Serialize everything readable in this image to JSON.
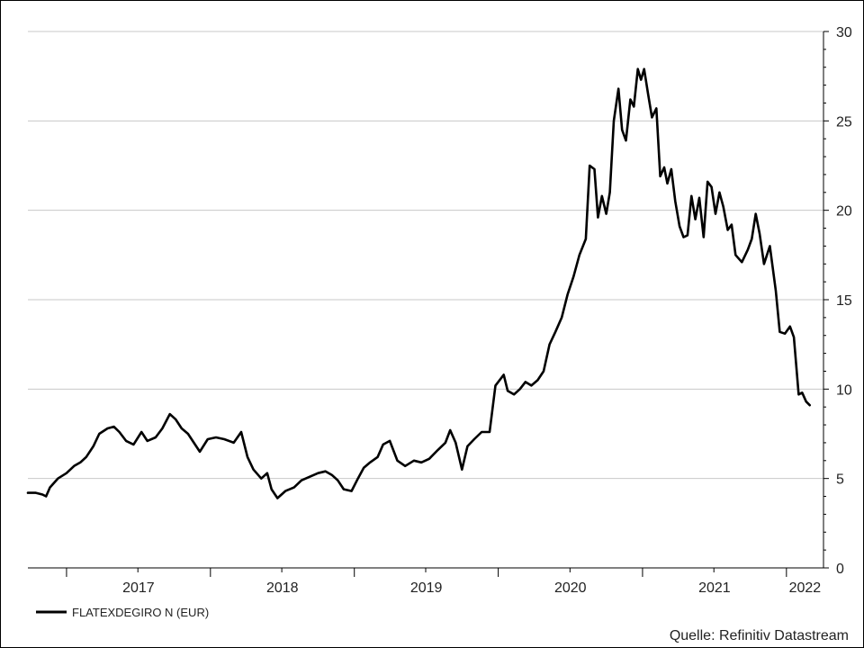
{
  "chart_data": {
    "type": "line",
    "title": "",
    "xlabel": "",
    "ylabel": "",
    "ylim": [
      0,
      30
    ],
    "yticks": [
      0,
      5,
      10,
      15,
      20,
      25,
      30
    ],
    "y_axis_side": "right",
    "grid": "horizontal",
    "x_tick_labels": [
      "2017",
      "2018",
      "2019",
      "2020",
      "2021",
      "2022"
    ],
    "xlim": [
      "2016-09-25",
      "2022-04-05"
    ],
    "legend": {
      "placement": "bottom-left",
      "entries": [
        "FLATEXDEGIRO N (EUR)"
      ]
    },
    "source": "Quelle: Refinitiv Datastream",
    "series": [
      {
        "name": "FLATEXDEGIRO N (EUR)",
        "color": "#000000",
        "points": [
          [
            "2016-09-25",
            4.2
          ],
          [
            "2016-10-15",
            4.2
          ],
          [
            "2016-11-01",
            4.1
          ],
          [
            "2016-11-10",
            4.0
          ],
          [
            "2016-11-20",
            4.5
          ],
          [
            "2016-12-10",
            5.0
          ],
          [
            "2017-01-01",
            5.3
          ],
          [
            "2017-01-20",
            5.7
          ],
          [
            "2017-02-05",
            5.9
          ],
          [
            "2017-02-20",
            6.2
          ],
          [
            "2017-03-10",
            6.8
          ],
          [
            "2017-03-25",
            7.5
          ],
          [
            "2017-04-15",
            7.8
          ],
          [
            "2017-05-01",
            7.9
          ],
          [
            "2017-05-15",
            7.6
          ],
          [
            "2017-06-01",
            7.1
          ],
          [
            "2017-06-20",
            6.9
          ],
          [
            "2017-07-10",
            7.6
          ],
          [
            "2017-07-25",
            7.1
          ],
          [
            "2017-08-15",
            7.3
          ],
          [
            "2017-09-01",
            7.8
          ],
          [
            "2017-09-20",
            8.6
          ],
          [
            "2017-10-05",
            8.3
          ],
          [
            "2017-10-20",
            7.8
          ],
          [
            "2017-11-05",
            7.5
          ],
          [
            "2017-11-20",
            7.0
          ],
          [
            "2017-12-05",
            6.5
          ],
          [
            "2017-12-25",
            7.2
          ],
          [
            "2018-01-15",
            7.3
          ],
          [
            "2018-02-05",
            7.2
          ],
          [
            "2018-03-01",
            7.0
          ],
          [
            "2018-03-20",
            7.6
          ],
          [
            "2018-04-05",
            6.2
          ],
          [
            "2018-04-20",
            5.5
          ],
          [
            "2018-05-10",
            5.0
          ],
          [
            "2018-05-25",
            5.3
          ],
          [
            "2018-06-05",
            4.4
          ],
          [
            "2018-06-20",
            3.9
          ],
          [
            "2018-07-10",
            4.3
          ],
          [
            "2018-08-01",
            4.5
          ],
          [
            "2018-08-20",
            4.9
          ],
          [
            "2018-09-10",
            5.1
          ],
          [
            "2018-10-01",
            5.3
          ],
          [
            "2018-10-20",
            5.4
          ],
          [
            "2018-11-05",
            5.2
          ],
          [
            "2018-11-20",
            4.9
          ],
          [
            "2018-12-05",
            4.4
          ],
          [
            "2018-12-25",
            4.3
          ],
          [
            "2019-01-10",
            5.0
          ],
          [
            "2019-01-25",
            5.6
          ],
          [
            "2019-02-10",
            5.9
          ],
          [
            "2019-03-01",
            6.2
          ],
          [
            "2019-03-15",
            6.9
          ],
          [
            "2019-04-01",
            7.1
          ],
          [
            "2019-04-20",
            6.0
          ],
          [
            "2019-05-10",
            5.7
          ],
          [
            "2019-06-01",
            6.0
          ],
          [
            "2019-06-20",
            5.9
          ],
          [
            "2019-07-10",
            6.1
          ],
          [
            "2019-08-01",
            6.6
          ],
          [
            "2019-08-20",
            7.0
          ],
          [
            "2019-09-01",
            7.7
          ],
          [
            "2019-09-15",
            7.0
          ],
          [
            "2019-10-01",
            5.5
          ],
          [
            "2019-10-15",
            6.8
          ],
          [
            "2019-11-01",
            7.2
          ],
          [
            "2019-11-20",
            7.6
          ],
          [
            "2019-12-10",
            7.6
          ],
          [
            "2019-12-25",
            10.2
          ],
          [
            "2020-01-15",
            10.8
          ],
          [
            "2020-01-25",
            9.9
          ],
          [
            "2020-02-10",
            9.7
          ],
          [
            "2020-02-25",
            10.0
          ],
          [
            "2020-03-10",
            10.4
          ],
          [
            "2020-03-25",
            10.2
          ],
          [
            "2020-04-10",
            10.5
          ],
          [
            "2020-04-25",
            11.0
          ],
          [
            "2020-05-10",
            12.5
          ],
          [
            "2020-05-25",
            13.2
          ],
          [
            "2020-06-10",
            14.0
          ],
          [
            "2020-06-25",
            15.3
          ],
          [
            "2020-07-10",
            16.3
          ],
          [
            "2020-07-25",
            17.5
          ],
          [
            "2020-08-10",
            18.4
          ],
          [
            "2020-08-20",
            22.5
          ],
          [
            "2020-09-01",
            22.3
          ],
          [
            "2020-09-10",
            19.6
          ],
          [
            "2020-09-20",
            20.8
          ],
          [
            "2020-10-01",
            19.8
          ],
          [
            "2020-10-10",
            21.0
          ],
          [
            "2020-10-20",
            25.0
          ],
          [
            "2020-11-01",
            26.8
          ],
          [
            "2020-11-10",
            24.5
          ],
          [
            "2020-11-20",
            23.9
          ],
          [
            "2020-12-01",
            26.2
          ],
          [
            "2020-12-10",
            25.8
          ],
          [
            "2020-12-20",
            27.9
          ],
          [
            "2020-12-28",
            27.3
          ],
          [
            "2021-01-05",
            27.9
          ],
          [
            "2021-01-15",
            26.5
          ],
          [
            "2021-01-25",
            25.2
          ],
          [
            "2021-02-05",
            25.7
          ],
          [
            "2021-02-15",
            21.9
          ],
          [
            "2021-02-25",
            22.4
          ],
          [
            "2021-03-05",
            21.5
          ],
          [
            "2021-03-15",
            22.3
          ],
          [
            "2021-03-25",
            20.5
          ],
          [
            "2021-04-05",
            19.1
          ],
          [
            "2021-04-15",
            18.5
          ],
          [
            "2021-04-25",
            18.6
          ],
          [
            "2021-05-05",
            20.8
          ],
          [
            "2021-05-15",
            19.5
          ],
          [
            "2021-05-25",
            20.7
          ],
          [
            "2021-06-05",
            18.5
          ],
          [
            "2021-06-15",
            21.6
          ],
          [
            "2021-06-25",
            21.3
          ],
          [
            "2021-07-05",
            19.8
          ],
          [
            "2021-07-15",
            21.0
          ],
          [
            "2021-07-25",
            20.2
          ],
          [
            "2021-08-05",
            18.9
          ],
          [
            "2021-08-15",
            19.2
          ],
          [
            "2021-08-25",
            17.5
          ],
          [
            "2021-09-10",
            17.1
          ],
          [
            "2021-09-25",
            17.8
          ],
          [
            "2021-10-05",
            18.4
          ],
          [
            "2021-10-15",
            19.8
          ],
          [
            "2021-10-25",
            18.7
          ],
          [
            "2021-11-05",
            17.0
          ],
          [
            "2021-11-20",
            18.0
          ],
          [
            "2021-12-05",
            15.5
          ],
          [
            "2021-12-15",
            13.2
          ],
          [
            "2021-12-28",
            13.1
          ],
          [
            "2022-01-10",
            13.5
          ],
          [
            "2022-01-20",
            12.9
          ],
          [
            "2022-02-01",
            9.7
          ],
          [
            "2022-02-10",
            9.8
          ],
          [
            "2022-02-20",
            9.3
          ],
          [
            "2022-03-01",
            9.1
          ]
        ]
      }
    ]
  }
}
